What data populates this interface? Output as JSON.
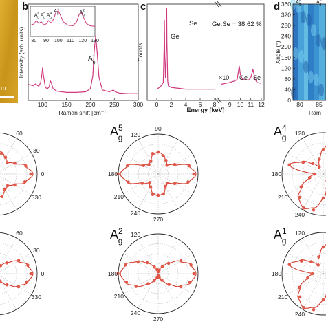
{
  "panels": {
    "b": "b",
    "c": "c",
    "d": "d"
  },
  "panel_a_scale": "m",
  "chart_data": [
    {
      "type": "line",
      "panel": "b",
      "xlabel": "Raman shift [cm⁻¹]",
      "ylabel": "Intensity (arb. units)",
      "xlim": [
        70,
        300
      ],
      "xticks": [
        100,
        150,
        200,
        250,
        300
      ],
      "series": [
        {
          "x": [
            70,
            80,
            84,
            86,
            88,
            92,
            96,
            98,
            100,
            102,
            106,
            110,
            114,
            116,
            118,
            122,
            130,
            150,
            170,
            190,
            200,
            205,
            208,
            211,
            214,
            218,
            225,
            240,
            248,
            252,
            260,
            280,
            300
          ],
          "y": [
            0.17,
            0.15,
            0.17,
            0.18,
            0.16,
            0.14,
            0.2,
            0.3,
            0.44,
            0.3,
            0.12,
            0.1,
            0.13,
            0.23,
            0.2,
            0.1,
            0.06,
            0.04,
            0.04,
            0.05,
            0.1,
            0.3,
            0.72,
            0.95,
            0.7,
            0.28,
            0.08,
            0.05,
            0.08,
            0.05,
            0.03,
            0.02,
            0.02
          ]
        }
      ],
      "peak_labels": [
        "A₁",
        "A₅",
        "A₄",
        "A₃",
        "A₂",
        "A₁"
      ],
      "peak_label_sups": [
        "6",
        "5",
        "4",
        "3",
        "2",
        "1"
      ]
    },
    {
      "type": "line",
      "panel": "b-inset",
      "xlim": [
        77,
        130
      ],
      "xticks": [
        80,
        90,
        100,
        110,
        120,
        130
      ],
      "series": [
        {
          "x": [
            77,
            80,
            82,
            84,
            86,
            88,
            90,
            92,
            94,
            96,
            98,
            100,
            102,
            104,
            108,
            112,
            115,
            117,
            119,
            121,
            123,
            126,
            130
          ],
          "y": [
            0.3,
            0.36,
            0.5,
            0.38,
            0.45,
            0.32,
            0.36,
            0.5,
            0.4,
            0.55,
            0.85,
            0.92,
            0.7,
            0.45,
            0.3,
            0.28,
            0.45,
            0.75,
            0.82,
            0.6,
            0.38,
            0.28,
            0.26
          ]
        }
      ],
      "peak_labels": [
        "A",
        "A",
        "A",
        "A",
        "A"
      ],
      "peak_label_sups": [
        "6",
        "5",
        "4",
        "3",
        "2"
      ],
      "peak_label_subs": [
        "g",
        "g",
        "g",
        "g",
        "g"
      ]
    },
    {
      "type": "line",
      "panel": "c",
      "xlabel": "Energy [keV]",
      "ylabel": "Counts",
      "annotation": "Ge:Se = 38:62 %",
      "xticks_left": [
        0,
        2,
        4,
        6,
        8
      ],
      "xticks_right": [
        9,
        10,
        11,
        12
      ],
      "multiplier_label": "×10",
      "peak_labels": [
        "Ge",
        "Se",
        "Ge",
        "Se"
      ],
      "series": [
        {
          "x": [
            0,
            0.5,
            0.9,
            1.0,
            1.05,
            1.1,
            1.2,
            1.3,
            1.37,
            1.4,
            1.5,
            1.6,
            2,
            3,
            4,
            5,
            6,
            7,
            8
          ],
          "y": [
            0.02,
            0.05,
            0.1,
            0.5,
            0.86,
            0.4,
            0.15,
            0.5,
            1.0,
            0.6,
            0.12,
            0.06,
            0.04,
            0.03,
            0.02,
            0.02,
            0.02,
            0.02,
            0.02
          ]
        },
        {
          "x": [
            8.2,
            8.6,
            9.0,
            9.2,
            9.5,
            9.7,
            9.9,
            10.0,
            10.2,
            10.5,
            10.8,
            11.0,
            11.2,
            11.4,
            11.6,
            12
          ],
          "y": [
            0.08,
            0.09,
            0.1,
            0.11,
            0.12,
            0.14,
            0.3,
            0.2,
            0.14,
            0.13,
            0.13,
            0.16,
            0.26,
            0.14,
            0.1,
            0.09
          ]
        }
      ]
    },
    {
      "type": "heatmap",
      "panel": "d",
      "ylabel": "Angle (°)",
      "xlabel": "Ram",
      "yticks": [
        0,
        40,
        80,
        120,
        160,
        200,
        240,
        280,
        320,
        360
      ],
      "xticks": [
        80,
        85
      ],
      "top_labels": [
        "A",
        "A"
      ],
      "top_label_sups": [
        "6",
        "5"
      ],
      "top_label_subs": [
        "g",
        "g"
      ]
    },
    {
      "type": "polar",
      "panel": "A_g^5",
      "label_main": "A",
      "label_sup": "5",
      "label_sub": "g",
      "angles_deg": [
        0,
        15,
        30,
        45,
        60,
        75,
        90,
        105,
        120,
        135,
        150,
        165,
        180,
        195,
        210,
        225,
        240,
        255,
        270,
        285,
        300,
        315,
        330,
        345
      ],
      "values": [
        0.95,
        0.8,
        0.45,
        0.32,
        0.38,
        0.5,
        0.55,
        0.5,
        0.38,
        0.32,
        0.45,
        0.8,
        0.95,
        0.8,
        0.45,
        0.32,
        0.38,
        0.5,
        0.55,
        0.5,
        0.38,
        0.32,
        0.45,
        0.8
      ]
    },
    {
      "type": "polar",
      "panel": "A_g^2",
      "label_main": "A",
      "label_sup": "2",
      "label_sub": "g",
      "angles_deg": [
        0,
        15,
        30,
        45,
        60,
        75,
        90,
        105,
        120,
        135,
        150,
        165,
        180,
        195,
        210,
        225,
        240,
        255,
        270,
        285,
        300,
        315,
        330,
        345
      ],
      "values": [
        0.95,
        0.85,
        0.62,
        0.38,
        0.2,
        0.1,
        0.05,
        0.1,
        0.2,
        0.38,
        0.62,
        0.85,
        0.95,
        0.85,
        0.62,
        0.38,
        0.2,
        0.1,
        0.05,
        0.1,
        0.2,
        0.38,
        0.62,
        0.85
      ]
    },
    {
      "type": "polar",
      "panel": "left-top",
      "angles_deg": [
        0,
        15,
        30,
        45,
        60,
        75,
        90,
        105,
        120,
        135,
        150,
        165,
        180,
        195,
        210,
        225,
        240,
        255,
        270,
        285,
        300,
        315,
        330,
        345
      ],
      "values": [
        0.9,
        0.75,
        0.5,
        0.4,
        0.45,
        0.55,
        0.6,
        0.55,
        0.45,
        0.4,
        0.5,
        0.75,
        0.9,
        0.75,
        0.5,
        0.4,
        0.45,
        0.55,
        0.6,
        0.55,
        0.45,
        0.4,
        0.5,
        0.75
      ]
    },
    {
      "type": "polar",
      "panel": "left-bottom",
      "angles_deg": [
        0,
        15,
        30,
        45,
        60,
        75,
        90,
        105,
        120,
        135,
        150,
        165,
        180,
        195,
        210,
        225,
        240,
        255,
        270,
        285,
        300,
        315,
        330,
        345
      ],
      "values": [
        0.9,
        0.8,
        0.6,
        0.38,
        0.22,
        0.12,
        0.08,
        0.12,
        0.22,
        0.38,
        0.6,
        0.8,
        0.9,
        0.8,
        0.6,
        0.38,
        0.22,
        0.12,
        0.08,
        0.12,
        0.22,
        0.38,
        0.6,
        0.8
      ]
    },
    {
      "type": "polar",
      "panel": "A_g^4",
      "label_main": "A",
      "label_sup": "4",
      "label_sub": "g",
      "angles_deg": [
        0,
        15,
        30,
        45,
        60,
        75,
        90,
        105,
        120,
        135,
        150,
        165,
        180,
        195,
        210,
        225,
        240,
        255,
        270,
        285,
        300,
        315,
        330,
        345
      ],
      "values": [
        0.2,
        0.35,
        0.6,
        0.85,
        0.95,
        0.85,
        0.6,
        0.35,
        0.2,
        0.35,
        0.6,
        0.85,
        0.2,
        0.35,
        0.6,
        0.85,
        0.95,
        0.85,
        0.6,
        0.35,
        0.2,
        0.35,
        0.6,
        0.85
      ]
    },
    {
      "type": "polar",
      "panel": "A_g^1",
      "label_main": "A",
      "label_sup": "1",
      "label_sub": "g",
      "angles_deg": [
        0,
        15,
        30,
        45,
        60,
        75,
        90,
        105,
        120,
        135,
        150,
        165,
        180,
        195,
        210,
        225,
        240,
        255,
        270,
        285,
        300,
        315,
        330,
        345
      ],
      "values": [
        0.25,
        0.4,
        0.65,
        0.85,
        0.95,
        0.85,
        0.65,
        0.4,
        0.25,
        0.4,
        0.65,
        0.85,
        0.25,
        0.4,
        0.65,
        0.85,
        0.95,
        0.85,
        0.65,
        0.4,
        0.25,
        0.4,
        0.65,
        0.85
      ]
    }
  ],
  "polar_angles": {
    "top": "90",
    "r1": "60",
    "r2": "30",
    "right": "0",
    "r4": "330",
    "l1": "120",
    "l2": "150",
    "left": "180",
    "l4": "210",
    "l5": "240",
    "bottom": "270",
    "r5": "300"
  },
  "colors": {
    "spectrum": "#d0387f",
    "polar_fit": "#d23a2a",
    "polar_point": "#e0584a",
    "grid": "#aaaaaa",
    "heatmap": "#3c8cc8",
    "panel_a": "#c89a1c"
  }
}
